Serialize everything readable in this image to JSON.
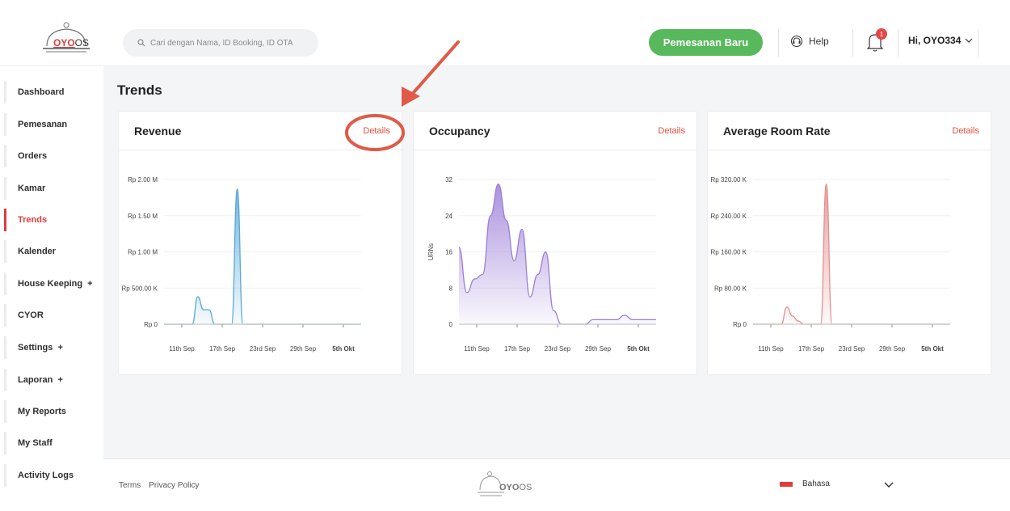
{
  "header": {
    "logo": {
      "oyo": "OYO",
      "os": "OS"
    },
    "search_placeholder": "Cari dengan Nama, ID Booking, ID OTA",
    "new_booking_label": "Pemesanan Baru",
    "help_label": "Help",
    "notification_count": "1",
    "user_label": "Hi, OYO334"
  },
  "sidebar": {
    "items": [
      {
        "label": "Dashboard"
      },
      {
        "label": "Pemesanan"
      },
      {
        "label": "Orders"
      },
      {
        "label": "Kamar"
      },
      {
        "label": "Trends",
        "active": true
      },
      {
        "label": "Kalender"
      },
      {
        "label": "House Keeping  +"
      },
      {
        "label": "CYOR"
      },
      {
        "label": "Settings  +"
      },
      {
        "label": "Laporan  +"
      },
      {
        "label": "My Reports"
      },
      {
        "label": "My Staff"
      },
      {
        "label": "Activity Logs"
      }
    ]
  },
  "page": {
    "title": "Trends"
  },
  "cards": [
    {
      "title": "Revenue",
      "details_label": "Details",
      "chart_data": {
        "type": "area",
        "color": "#58a9d6",
        "ylim": [
          0,
          2000000
        ],
        "yticks": [
          "Rp 2.00 M",
          "Rp 1.50 M",
          "Rp 1.00 M",
          "Rp 500.00 K",
          "Rp 0"
        ],
        "xticks": [
          "11th Sep",
          "17th Sep",
          "23rd Sep",
          "29th Sep",
          "5th Okt"
        ],
        "values": [
          0,
          0,
          0,
          0,
          0,
          0,
          380000,
          200000,
          200000,
          0,
          0,
          0,
          0,
          1870000,
          0,
          0,
          0,
          0,
          0,
          0,
          0,
          0,
          0,
          0,
          0,
          0,
          0,
          0,
          0,
          0,
          0,
          0,
          0,
          0,
          0,
          0
        ]
      }
    },
    {
      "title": "Occupancy",
      "details_label": "Details",
      "chart_data": {
        "type": "area",
        "color": "#9d7fd8",
        "ylabel": "URNs",
        "ylim": [
          0,
          32
        ],
        "yticks": [
          "32",
          "24",
          "16",
          "8",
          "0"
        ],
        "xticks": [
          "11th Sep",
          "17th Sep",
          "23rd Sep",
          "29th Sep",
          "5th Okt"
        ],
        "values": [
          17,
          7,
          10,
          11,
          24,
          31,
          23,
          14,
          21,
          6,
          11,
          16,
          3,
          0,
          0,
          0,
          0,
          1,
          1,
          1,
          1,
          2,
          1,
          1,
          1,
          1
        ]
      }
    },
    {
      "title": "Average Room Rate",
      "details_label": "Details",
      "chart_data": {
        "type": "area",
        "color": "#e58f8f",
        "ylim": [
          0,
          320000
        ],
        "yticks": [
          "Rp 320.00 K",
          "Rp 240.00 K",
          "Rp 160.00 K",
          "Rp 80.00 K",
          "Rp 0"
        ],
        "xticks": [
          "11th Sep",
          "17th Sep",
          "23rd Sep",
          "29th Sep",
          "5th Okt"
        ],
        "values": [
          0,
          0,
          0,
          0,
          0,
          0,
          38000,
          18000,
          7000,
          0,
          0,
          0,
          0,
          310000,
          0,
          0,
          0,
          0,
          0,
          0,
          0,
          0,
          0,
          0,
          0,
          0,
          0,
          0,
          0,
          0,
          0,
          0,
          0,
          0,
          0,
          0
        ]
      }
    }
  ],
  "footer": {
    "terms_label": "Terms",
    "privacy_label": "Privacy Policy",
    "language_label": "Bahasa"
  },
  "colors": {
    "brand_red": "#e23b3b",
    "green": "#58b85c",
    "annotation_red": "#e05a47"
  }
}
